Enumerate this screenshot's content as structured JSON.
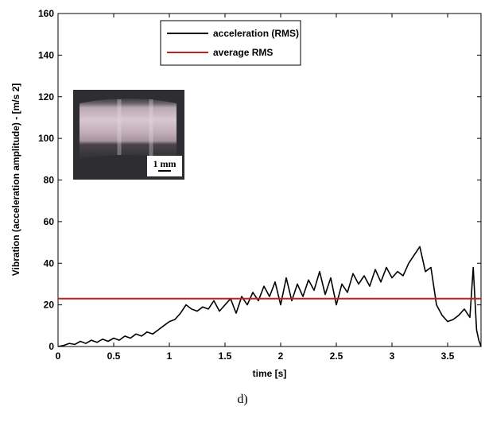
{
  "caption": "d)",
  "inset": {
    "scale_label": "1 mm"
  },
  "chart_data": {
    "type": "line",
    "title": "",
    "xlabel": "time [s]",
    "ylabel": "Vibration (acceleration amplitude) - [m/s 2]",
    "xlim": [
      0,
      3.8
    ],
    "ylim": [
      0,
      160
    ],
    "xticks": [
      0,
      0.5,
      1,
      1.5,
      2,
      2.5,
      3,
      3.5
    ],
    "xtick_labels": [
      "0",
      "0.5",
      "1",
      "1.5",
      "2",
      "2.5",
      "3",
      "3.5"
    ],
    "yticks": [
      0,
      20,
      40,
      60,
      80,
      100,
      120,
      140,
      160
    ],
    "ytick_labels": [
      "0",
      "20",
      "40",
      "60",
      "80",
      "100",
      "120",
      "140",
      "160"
    ],
    "grid": false,
    "legend_position": "top-center",
    "series": [
      {
        "name": "acceleration (RMS)",
        "color": "#000000",
        "x": [
          0,
          0.05,
          0.1,
          0.15,
          0.2,
          0.25,
          0.3,
          0.35,
          0.4,
          0.45,
          0.5,
          0.55,
          0.6,
          0.65,
          0.7,
          0.75,
          0.8,
          0.85,
          0.9,
          0.95,
          1.0,
          1.05,
          1.1,
          1.15,
          1.2,
          1.25,
          1.3,
          1.35,
          1.4,
          1.45,
          1.5,
          1.55,
          1.6,
          1.65,
          1.7,
          1.75,
          1.8,
          1.85,
          1.9,
          1.95,
          2.0,
          2.05,
          2.1,
          2.15,
          2.2,
          2.25,
          2.3,
          2.35,
          2.4,
          2.45,
          2.5,
          2.55,
          2.6,
          2.65,
          2.7,
          2.75,
          2.8,
          2.85,
          2.9,
          2.95,
          3.0,
          3.05,
          3.1,
          3.15,
          3.2,
          3.25,
          3.3,
          3.35,
          3.4,
          3.45,
          3.5,
          3.55,
          3.6,
          3.65,
          3.7,
          3.73,
          3.76,
          3.78,
          3.8
        ],
        "values": [
          0,
          0.5,
          1.5,
          1,
          2.5,
          1.5,
          3,
          2,
          3.5,
          2.5,
          4,
          3,
          5,
          4,
          6,
          5,
          7,
          6,
          8,
          10,
          12,
          13,
          16,
          20,
          18,
          17,
          19,
          18,
          22,
          17,
          20,
          23,
          16,
          24,
          20,
          26,
          22,
          29,
          24,
          31,
          20,
          33,
          22,
          30,
          24,
          32,
          27,
          36,
          25,
          33,
          20,
          30,
          26,
          35,
          30,
          34,
          29,
          37,
          31,
          38,
          33,
          36,
          34,
          40,
          44,
          48,
          36,
          38,
          20,
          15,
          12,
          13,
          15,
          18,
          14,
          38,
          8,
          3,
          0
        ]
      },
      {
        "name": "average RMS",
        "color": "#c0201e",
        "x": [
          0,
          3.8
        ],
        "values": [
          23,
          23
        ]
      }
    ]
  }
}
